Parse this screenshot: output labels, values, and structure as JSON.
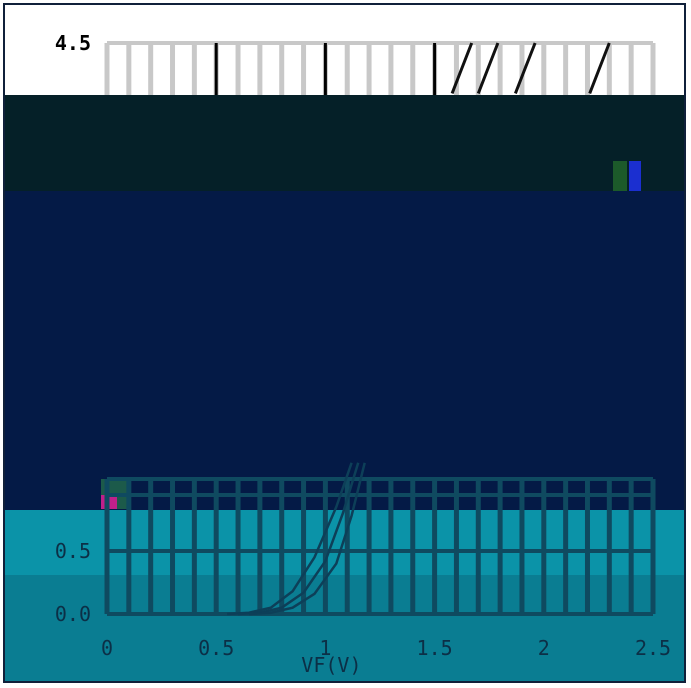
{
  "colors": {
    "background": "#ffffff",
    "overlay_top": "#052028",
    "overlay_main": "#041a46",
    "teal_band": "#0b93a8",
    "teal_band_dark": "#0a7d92",
    "grid": "#c8c8c8",
    "grid_dark": "#0f4a60",
    "axis": "#000000",
    "curve_dark": "#0d3f58",
    "curve_light": "#111111",
    "tick_text": "#000000",
    "tick_text_dark": "#0c2f46"
  },
  "chart_data": {
    "type": "line",
    "title": "",
    "xlabel": "VF(V)",
    "ylabel": "",
    "xlim": [
      0,
      2.5
    ],
    "ylim": [
      0,
      4.5
    ],
    "x_ticks": [
      "0",
      "0.5",
      "1",
      "1.5",
      "2",
      "2.5"
    ],
    "x_tick_values": [
      0,
      0.5,
      1,
      1.5,
      2,
      2.5
    ],
    "y_ticks": [
      "0.0",
      "0.5",
      "4.5"
    ],
    "y_tick_values": [
      0,
      0.5,
      4.5
    ],
    "grid": true,
    "series": [
      {
        "x": [
          0.55,
          0.65,
          0.75,
          0.85,
          0.95,
          1.05,
          1.12
        ],
        "y": [
          0.0,
          0.01,
          0.05,
          0.18,
          0.45,
          0.85,
          1.2
        ]
      },
      {
        "x": [
          0.6,
          0.7,
          0.8,
          0.9,
          1.0,
          1.08,
          1.15
        ],
        "y": [
          0.0,
          0.01,
          0.05,
          0.17,
          0.42,
          0.8,
          1.2
        ]
      },
      {
        "x": [
          0.65,
          0.75,
          0.85,
          0.95,
          1.05,
          1.12,
          1.18
        ],
        "y": [
          0.0,
          0.01,
          0.05,
          0.16,
          0.4,
          0.78,
          1.2
        ]
      },
      {
        "x": [
          1.58,
          1.62,
          1.67
        ],
        "y": [
          4.05,
          4.25,
          4.5
        ]
      },
      {
        "x": [
          1.7,
          1.74,
          1.79
        ],
        "y": [
          4.05,
          4.25,
          4.5
        ]
      },
      {
        "x": [
          1.87,
          1.91,
          1.96
        ],
        "y": [
          4.05,
          4.25,
          4.5
        ]
      },
      {
        "x": [
          2.21,
          2.25,
          2.3
        ],
        "y": [
          4.05,
          4.25,
          4.5
        ]
      }
    ]
  }
}
